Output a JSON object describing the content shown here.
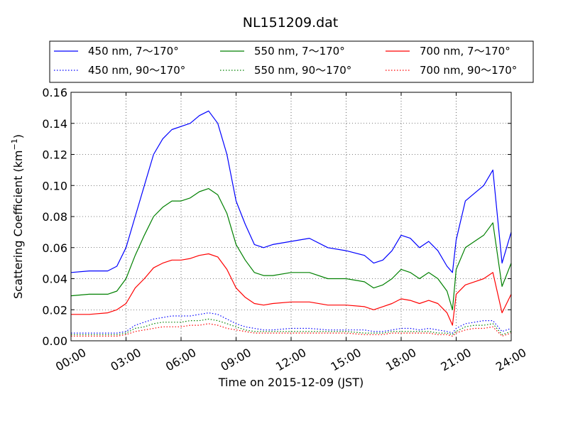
{
  "chart_data": {
    "type": "line",
    "title": "NL151209.dat",
    "xlabel": "Time on 2015-12-09 (JST)",
    "ylabel": "Scattering Coefficient (km",
    "ylabel_exp": "−1",
    "ylabel_close": ")",
    "xlim": [
      0,
      24
    ],
    "ylim": [
      0.0,
      0.16
    ],
    "x_ticks": [
      0,
      3,
      6,
      9,
      12,
      15,
      18,
      21,
      24
    ],
    "x_tick_labels": [
      "00:00",
      "03:00",
      "06:00",
      "09:00",
      "12:00",
      "15:00",
      "18:00",
      "21:00",
      "24:00"
    ],
    "y_ticks": [
      0.0,
      0.02,
      0.04,
      0.06,
      0.08,
      0.1,
      0.12,
      0.14,
      0.16
    ],
    "y_tick_labels": [
      "0.00",
      "0.02",
      "0.04",
      "0.06",
      "0.08",
      "0.10",
      "0.12",
      "0.14",
      "0.16"
    ],
    "grid": true,
    "legend_position": "top",
    "x": [
      0,
      1,
      2,
      2.5,
      3,
      3.5,
      4,
      4.5,
      5,
      5.5,
      6,
      6.5,
      7,
      7.5,
      8,
      8.5,
      9,
      9.5,
      10,
      10.5,
      11,
      12,
      13,
      14,
      15,
      16,
      16.5,
      17,
      17.5,
      18,
      18.5,
      19,
      19.5,
      20,
      20.5,
      20.8,
      21,
      21.5,
      22,
      22.5,
      23,
      23.5,
      24
    ],
    "series": [
      {
        "name": "450 nm, 7～170°",
        "color": "#0000ff",
        "style": "solid",
        "values": [
          0.044,
          0.045,
          0.045,
          0.048,
          0.06,
          0.08,
          0.1,
          0.12,
          0.13,
          0.136,
          0.138,
          0.14,
          0.145,
          0.148,
          0.14,
          0.12,
          0.09,
          0.075,
          0.062,
          0.06,
          0.062,
          0.064,
          0.066,
          0.06,
          0.058,
          0.055,
          0.05,
          0.052,
          0.058,
          0.068,
          0.066,
          0.06,
          0.064,
          0.058,
          0.048,
          0.044,
          0.065,
          0.09,
          0.095,
          0.1,
          0.11,
          0.05,
          0.07
        ]
      },
      {
        "name": "550 nm, 7～170°",
        "color": "#008000",
        "style": "solid",
        "values": [
          0.029,
          0.03,
          0.03,
          0.032,
          0.04,
          0.055,
          0.068,
          0.08,
          0.086,
          0.09,
          0.09,
          0.092,
          0.096,
          0.098,
          0.094,
          0.082,
          0.062,
          0.052,
          0.044,
          0.042,
          0.042,
          0.044,
          0.044,
          0.04,
          0.04,
          0.038,
          0.034,
          0.036,
          0.04,
          0.046,
          0.044,
          0.04,
          0.044,
          0.04,
          0.032,
          0.02,
          0.046,
          0.06,
          0.064,
          0.068,
          0.076,
          0.035,
          0.05
        ]
      },
      {
        "name": "700 nm, 7～170°",
        "color": "#ff0000",
        "style": "solid",
        "values": [
          0.017,
          0.017,
          0.018,
          0.02,
          0.024,
          0.034,
          0.04,
          0.047,
          0.05,
          0.052,
          0.052,
          0.053,
          0.055,
          0.056,
          0.054,
          0.046,
          0.034,
          0.028,
          0.024,
          0.023,
          0.024,
          0.025,
          0.025,
          0.023,
          0.023,
          0.022,
          0.02,
          0.022,
          0.024,
          0.027,
          0.026,
          0.024,
          0.026,
          0.024,
          0.018,
          0.01,
          0.03,
          0.036,
          0.038,
          0.04,
          0.044,
          0.018,
          0.03
        ]
      },
      {
        "name": "450 nm, 90～170°",
        "color": "#0000ff",
        "style": "dotted",
        "values": [
          0.005,
          0.005,
          0.005,
          0.005,
          0.006,
          0.01,
          0.012,
          0.014,
          0.015,
          0.016,
          0.016,
          0.016,
          0.017,
          0.018,
          0.017,
          0.014,
          0.011,
          0.009,
          0.008,
          0.007,
          0.007,
          0.008,
          0.008,
          0.007,
          0.007,
          0.007,
          0.006,
          0.006,
          0.007,
          0.008,
          0.008,
          0.007,
          0.008,
          0.007,
          0.006,
          0.005,
          0.008,
          0.011,
          0.012,
          0.013,
          0.013,
          0.006,
          0.008
        ]
      },
      {
        "name": "550 nm, 90～170°",
        "color": "#008000",
        "style": "dotted",
        "values": [
          0.004,
          0.004,
          0.004,
          0.004,
          0.005,
          0.008,
          0.009,
          0.011,
          0.012,
          0.012,
          0.012,
          0.013,
          0.013,
          0.014,
          0.013,
          0.011,
          0.009,
          0.007,
          0.006,
          0.006,
          0.006,
          0.006,
          0.006,
          0.006,
          0.006,
          0.005,
          0.005,
          0.005,
          0.006,
          0.006,
          0.006,
          0.006,
          0.006,
          0.005,
          0.005,
          0.004,
          0.006,
          0.009,
          0.01,
          0.01,
          0.011,
          0.004,
          0.006
        ]
      },
      {
        "name": "700 nm, 90～170°",
        "color": "#ff0000",
        "style": "dotted",
        "values": [
          0.003,
          0.003,
          0.003,
          0.003,
          0.004,
          0.006,
          0.007,
          0.008,
          0.009,
          0.009,
          0.009,
          0.01,
          0.01,
          0.011,
          0.01,
          0.008,
          0.007,
          0.006,
          0.005,
          0.005,
          0.005,
          0.005,
          0.005,
          0.005,
          0.005,
          0.004,
          0.004,
          0.004,
          0.005,
          0.005,
          0.005,
          0.005,
          0.005,
          0.004,
          0.004,
          0.003,
          0.005,
          0.007,
          0.008,
          0.008,
          0.009,
          0.003,
          0.005
        ]
      }
    ]
  }
}
